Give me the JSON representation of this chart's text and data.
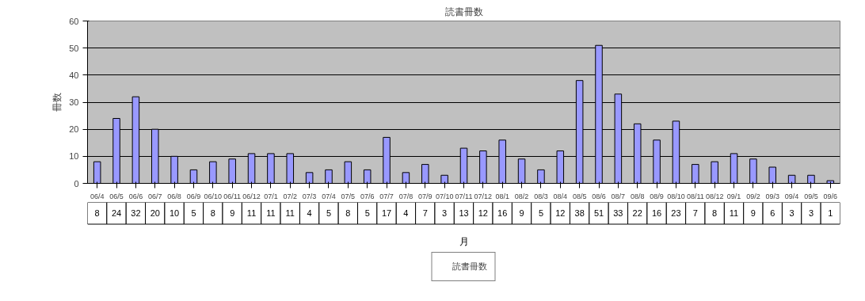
{
  "chart_data": {
    "type": "bar",
    "title": "読書冊数",
    "xlabel": "月",
    "ylabel": "冊数",
    "categories": [
      "06/4",
      "06/5",
      "06/6",
      "06/7",
      "06/8",
      "06/9",
      "06/10",
      "06/11",
      "06/12",
      "07/1",
      "07/2",
      "07/3",
      "07/4",
      "07/5",
      "07/6",
      "07/7",
      "07/8",
      "07/9",
      "07/10",
      "07/11",
      "07/12",
      "08/1",
      "08/2",
      "08/3",
      "08/4",
      "08/5",
      "08/6",
      "08/7",
      "08/8",
      "08/9",
      "08/10",
      "08/11",
      "08/12",
      "09/1",
      "09/2",
      "09/3",
      "09/4",
      "09/5",
      "09/6"
    ],
    "series": [
      {
        "name": "読書冊数",
        "color": "#9999ff",
        "values": [
          8,
          24,
          32,
          20,
          10,
          5,
          8,
          9,
          11,
          11,
          11,
          4,
          5,
          8,
          5,
          17,
          4,
          7,
          3,
          13,
          12,
          16,
          9,
          5,
          12,
          38,
          51,
          33,
          22,
          16,
          23,
          7,
          8,
          11,
          9,
          6,
          3,
          3,
          1
        ]
      }
    ],
    "ylim": [
      0,
      60
    ],
    "yticks": [
      0,
      10,
      20,
      30,
      40,
      50,
      60
    ],
    "grid": "y",
    "legend": "bottom",
    "data_labels": true
  }
}
